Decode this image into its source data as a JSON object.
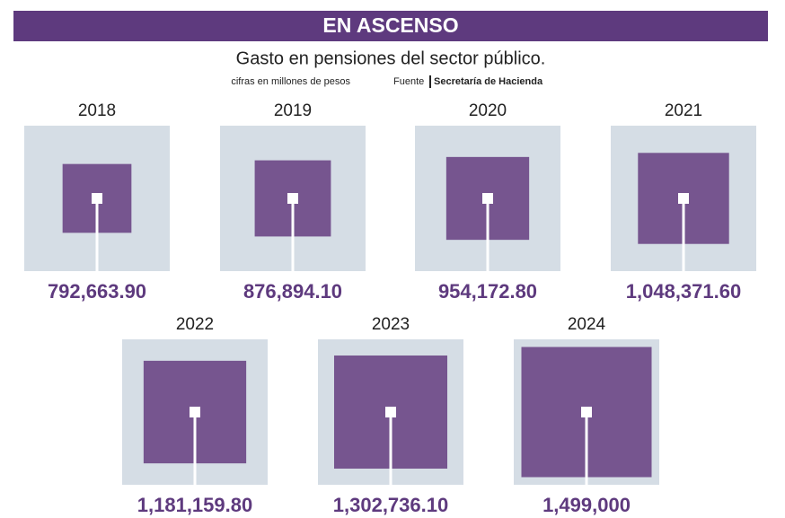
{
  "chart_data": {
    "type": "square",
    "title": "EN ASCENSO",
    "subtitle": "Gasto en pensiones del sector público.",
    "note": "cifras en millones de pesos",
    "source_label": "Fuente",
    "source": "Secretaría de Hacienda",
    "categories": [
      "2018",
      "2019",
      "2020",
      "2021",
      "2022",
      "2023",
      "2024"
    ],
    "values": [
      792663.9,
      876894.1,
      954172.8,
      1048371.6,
      1181159.8,
      1302736.1,
      1499000
    ],
    "value_labels": [
      "792,663.90",
      "876,894.10",
      "954,172.80",
      "1,048,371.60",
      "1,181,159.80",
      "1,302,736.10",
      "1,499,000"
    ],
    "color": "#76558f"
  }
}
